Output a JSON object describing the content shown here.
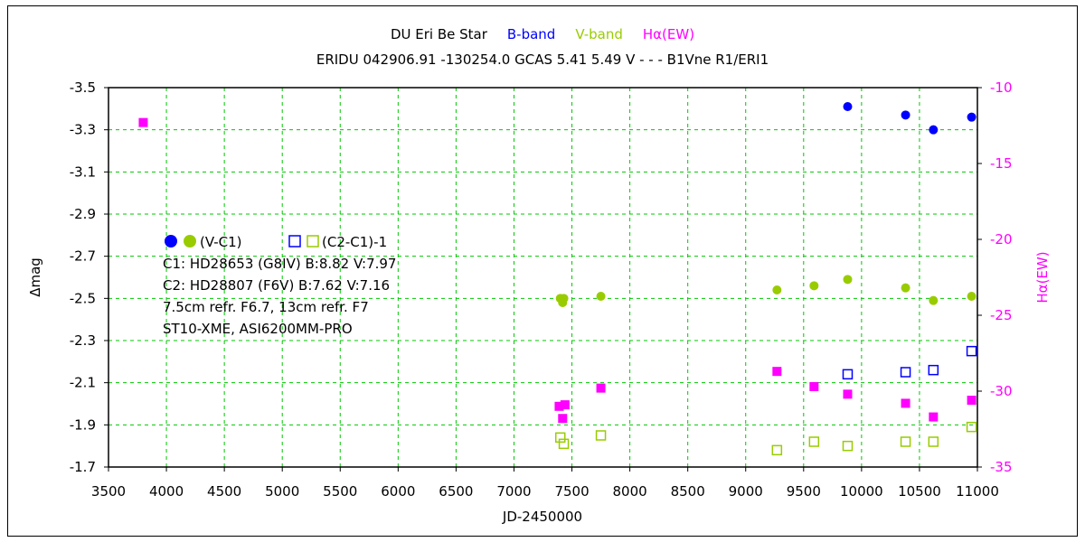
{
  "chart_data": {
    "type": "scatter",
    "title_parts": [
      {
        "text": "DU Eri    Be Star",
        "color": "#000000"
      },
      {
        "text": "B-band",
        "color": "#0000ff"
      },
      {
        "text": "V-band",
        "color": "#99cc00"
      },
      {
        "text": "Hα(EW)",
        "color": "#ff00ff"
      }
    ],
    "subtitle": "ERIDU 042906.91 -130254.0 GCAS 5.41 5.49 V - - - B1Vne R1/ERI1",
    "xlabel": "JD-2450000",
    "ylabel": "Δmag",
    "y2label": "Hα(EW)",
    "xlim": [
      3500,
      11000
    ],
    "ylim": [
      -3.5,
      -1.7
    ],
    "y_inverted": true,
    "y2lim": [
      -10,
      -35
    ],
    "grid": true,
    "x_ticks": [
      "3500",
      "4000",
      "4500",
      "5000",
      "5500",
      "6000",
      "6500",
      "7000",
      "7500",
      "8000",
      "8500",
      "9000",
      "9500",
      "10000",
      "10500",
      "11000"
    ],
    "y_ticks": [
      "-3.5",
      "-3.3",
      "-3.1",
      "-2.9",
      "-2.7",
      "-2.5",
      "-2.3",
      "-2.1",
      "-1.9",
      "-1.7"
    ],
    "y2_ticks": [
      "-10",
      "-15",
      "-20",
      "-25",
      "-30",
      "-35"
    ],
    "legend": {
      "row1_label": "(V-C1)",
      "row1b_label": "(C2-C1)-1",
      "lines": [
        "C1: HD28653 (G8IV)  B:8.82  V:7.97",
        "C2: HD28807 (F6V)  B:7.62  V:7.16",
        "7.5cm refr. F6.7,  13cm refr. F7",
        "ST10-XME,  ASI6200MM-PRO"
      ]
    },
    "colors": {
      "b_band": "#0000ff",
      "v_band": "#99cc00",
      "halpha": "#ff00ff",
      "grid": "#00c800",
      "right_axis": "#ff00ff"
    },
    "series": [
      {
        "name": "B-band",
        "marker": "filled-circle",
        "axis": "left",
        "points": [
          [
            9880,
            -3.41
          ],
          [
            10380,
            -3.37
          ],
          [
            10620,
            -3.3
          ],
          [
            10950,
            -3.36
          ]
        ]
      },
      {
        "name": "V-band",
        "marker": "filled-circle",
        "axis": "left",
        "points": [
          [
            7400,
            -2.5
          ],
          [
            7420,
            -2.48
          ],
          [
            7430,
            -2.5
          ],
          [
            7750,
            -2.51
          ],
          [
            9270,
            -2.54
          ],
          [
            9590,
            -2.56
          ],
          [
            9880,
            -2.59
          ],
          [
            10380,
            -2.55
          ],
          [
            10620,
            -2.49
          ],
          [
            10950,
            -2.51
          ]
        ]
      },
      {
        "name": "(C2-C1)-1 B",
        "marker": "open-square",
        "axis": "left",
        "points": [
          [
            9880,
            -2.14
          ],
          [
            10380,
            -2.15
          ],
          [
            10620,
            -2.16
          ],
          [
            10950,
            -2.25
          ]
        ]
      },
      {
        "name": "(C2-C1)-1 V",
        "marker": "open-square",
        "axis": "left",
        "points": [
          [
            7400,
            -1.84
          ],
          [
            7430,
            -1.81
          ],
          [
            7750,
            -1.85
          ],
          [
            9270,
            -1.78
          ],
          [
            9590,
            -1.82
          ],
          [
            9880,
            -1.8
          ],
          [
            10380,
            -1.82
          ],
          [
            10620,
            -1.82
          ],
          [
            10950,
            -1.89
          ]
        ]
      },
      {
        "name": "Hα(EW)",
        "marker": "filled-square",
        "axis": "right",
        "points": [
          [
            3800,
            -12.3
          ],
          [
            7390,
            -31.0
          ],
          [
            7440,
            -30.9
          ],
          [
            7420,
            -31.8
          ],
          [
            7750,
            -29.8
          ],
          [
            9270,
            -28.7
          ],
          [
            9590,
            -29.7
          ],
          [
            9880,
            -30.2
          ],
          [
            10380,
            -30.8
          ],
          [
            10620,
            -31.7
          ],
          [
            10950,
            -30.6
          ]
        ]
      }
    ]
  }
}
